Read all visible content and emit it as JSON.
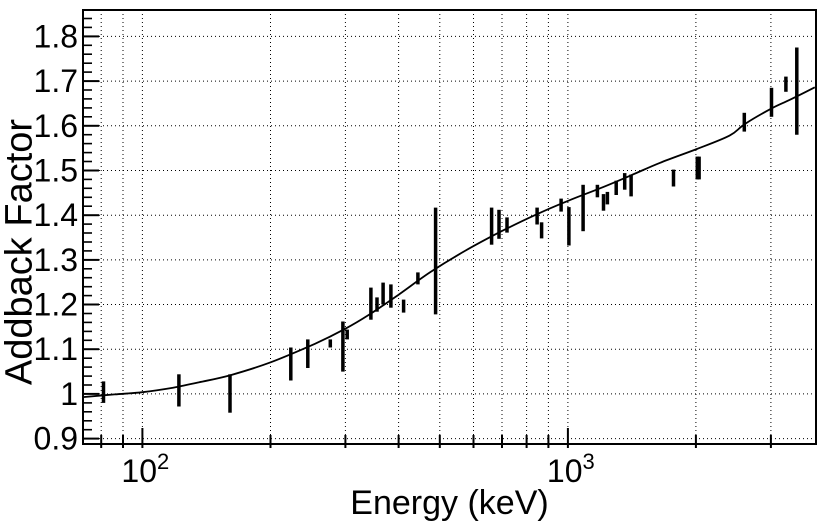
{
  "figure": {
    "background_color": "#ffffff",
    "foreground_color": "#000000"
  },
  "chart_data": {
    "type": "scatter",
    "title": "",
    "xlabel": "Energy (keV)",
    "ylabel": "Addback Factor",
    "x_scale": "log",
    "y_scale": "linear",
    "x_range_keV": [
      72.5,
      3830
    ],
    "y_range": [
      0.888,
      1.859
    ],
    "grid": "dotted black gridlines at every x tick and every major y tick",
    "legend": "none",
    "x_major_ticks": [
      {
        "value": 100,
        "label": "10^2"
      },
      {
        "value": 1000,
        "label": "10^3"
      }
    ],
    "x_minor_ticks": [
      80,
      90,
      200,
      300,
      400,
      500,
      600,
      700,
      800,
      900,
      2000,
      3000
    ],
    "y_major_ticks": [
      {
        "value": 0.9,
        "label": "0.9"
      },
      {
        "value": 1.0,
        "label": "1"
      },
      {
        "value": 1.1,
        "label": "1.1"
      },
      {
        "value": 1.2,
        "label": "1.2"
      },
      {
        "value": 1.3,
        "label": "1.3"
      },
      {
        "value": 1.4,
        "label": "1.4"
      },
      {
        "value": 1.5,
        "label": "1.5"
      },
      {
        "value": 1.6,
        "label": "1.6"
      },
      {
        "value": 1.7,
        "label": "1.7"
      },
      {
        "value": 1.8,
        "label": "1.8"
      }
    ],
    "y_minor_tick_step": 0.02,
    "points": {
      "format": [
        "energy_keV",
        "factor_low",
        "factor_high"
      ],
      "marker": "vertical error bar, no cap, black",
      "values": [
        [
          81.0,
          0.98,
          1.028
        ],
        [
          121.8,
          0.972,
          1.044
        ],
        [
          160.6,
          0.958,
          1.044
        ],
        [
          223.2,
          1.03,
          1.104
        ],
        [
          244.7,
          1.058,
          1.122
        ],
        [
          276.4,
          1.104,
          1.122
        ],
        [
          295.9,
          1.05,
          1.162
        ],
        [
          302.9,
          1.122,
          1.144
        ],
        [
          344.3,
          1.166,
          1.238
        ],
        [
          356.0,
          1.184,
          1.216
        ],
        [
          367.8,
          1.2,
          1.249
        ],
        [
          383.8,
          1.193,
          1.245
        ],
        [
          411.1,
          1.182,
          1.211
        ],
        [
          444.0,
          1.245,
          1.272
        ],
        [
          488.7,
          1.178,
          1.417
        ],
        [
          661.7,
          1.334,
          1.417
        ],
        [
          688.7,
          1.347,
          1.412
        ],
        [
          719.3,
          1.361,
          1.395
        ],
        [
          846.8,
          1.379,
          1.417
        ],
        [
          867.4,
          1.348,
          1.384
        ],
        [
          964.1,
          1.408,
          1.437
        ],
        [
          1005.3,
          1.332,
          1.418
        ],
        [
          1085.8,
          1.364,
          1.468
        ],
        [
          1173.2,
          1.44,
          1.468
        ],
        [
          1212.9,
          1.41,
          1.447
        ],
        [
          1238.3,
          1.424,
          1.452
        ],
        [
          1299.1,
          1.445,
          1.477
        ],
        [
          1360.2,
          1.457,
          1.494
        ],
        [
          1408.0,
          1.442,
          1.491
        ],
        [
          1771.4,
          1.464,
          1.502
        ],
        [
          2015.2,
          1.48,
          1.531
        ],
        [
          2034.8,
          1.48,
          1.531
        ],
        [
          2598.5,
          1.587,
          1.629
        ],
        [
          3009.6,
          1.62,
          1.685
        ],
        [
          3253.4,
          1.676,
          1.71
        ],
        [
          3451.2,
          1.58,
          1.775
        ]
      ]
    },
    "curve": {
      "description": "smooth fit curve through data",
      "format": [
        "energy_keV",
        "factor"
      ],
      "values": [
        [
          72.5,
          0.993
        ],
        [
          86,
          0.999
        ],
        [
          100,
          1.004
        ],
        [
          118,
          1.014
        ],
        [
          136,
          1.026
        ],
        [
          161,
          1.042
        ],
        [
          199,
          1.07
        ],
        [
          254,
          1.112
        ],
        [
          300,
          1.146
        ],
        [
          342,
          1.178
        ],
        [
          400,
          1.222
        ],
        [
          474,
          1.272
        ],
        [
          573,
          1.32
        ],
        [
          692,
          1.362
        ],
        [
          836,
          1.4
        ],
        [
          1000,
          1.432
        ],
        [
          1190,
          1.46
        ],
        [
          1399,
          1.488
        ],
        [
          1645,
          1.517
        ],
        [
          2010,
          1.548
        ],
        [
          2400,
          1.578
        ],
        [
          2606,
          1.604
        ],
        [
          3000,
          1.638
        ],
        [
          3324,
          1.658
        ],
        [
          3806,
          1.686
        ]
      ]
    }
  }
}
